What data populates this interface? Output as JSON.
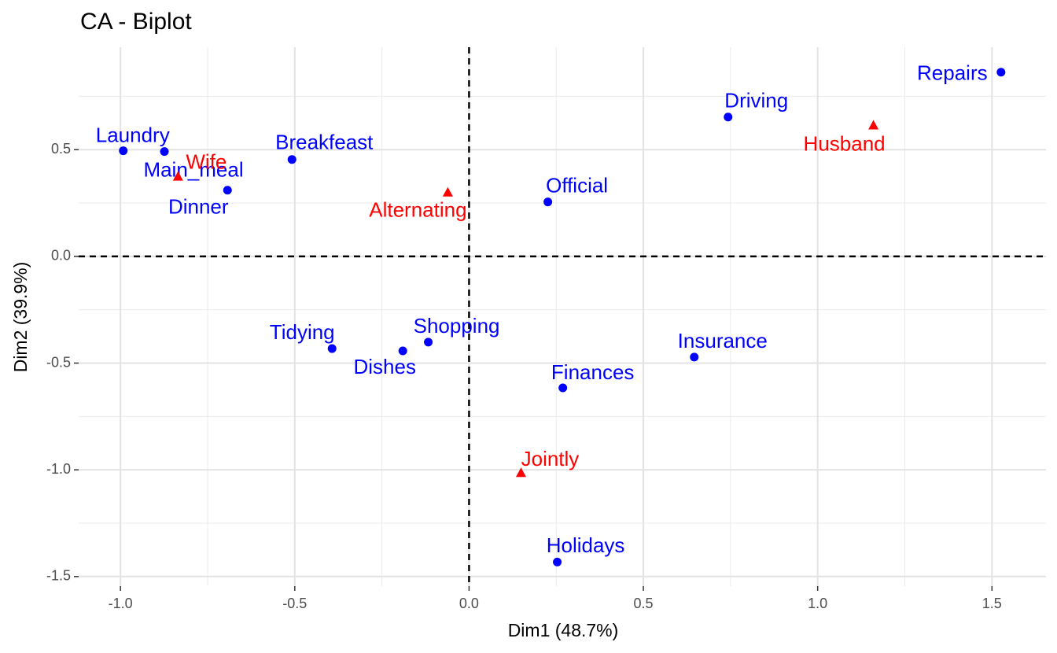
{
  "chart_data": {
    "type": "scatter",
    "title": "CA - Biplot",
    "x_label": "Dim1 (48.7%)",
    "y_label": "Dim2 (39.9%)",
    "xlim": [
      -1.12,
      1.655
    ],
    "ylim": [
      -1.545,
      0.98
    ],
    "xticks": [
      {
        "value": -1,
        "label": "-1.0"
      },
      {
        "value": -0.5,
        "label": "-0.5"
      },
      {
        "value": 0,
        "label": "0.0"
      },
      {
        "value": 0.5,
        "label": "0.5"
      },
      {
        "value": 1,
        "label": "1.0"
      },
      {
        "value": 1.5,
        "label": "1.5"
      }
    ],
    "yticks": [
      {
        "value": 0.5,
        "label": "0.5"
      },
      {
        "value": 0,
        "label": "0.0"
      },
      {
        "value": -0.5,
        "label": "-0.5"
      },
      {
        "value": -1,
        "label": "-1.0"
      },
      {
        "value": -1.5,
        "label": "-1.5"
      }
    ],
    "x_minor_ticks": [
      -0.75,
      -0.25,
      0.25,
      0.75,
      1.25
    ],
    "y_minor_ticks": [
      0.75,
      0.25,
      -0.25,
      -0.75,
      -1.25
    ],
    "grid": true,
    "reference_x": 0,
    "reference_y": 0,
    "series": [
      {
        "color": "#0000ff",
        "marker": "circle",
        "labels": [
          "Laundry",
          "Main_meal",
          "Dinner",
          "Breakfeast",
          "Tidying",
          "Dishes",
          "Shopping",
          "Official",
          "Driving",
          "Finances",
          "Insurance",
          "Holidays",
          "Repairs"
        ],
        "x": [
          -0.992,
          -0.874,
          -0.693,
          -0.508,
          -0.393,
          -0.19,
          -0.117,
          0.226,
          0.743,
          0.269,
          0.646,
          0.253,
          1.526
        ],
        "values": [
          0.495,
          0.491,
          0.31,
          0.454,
          -0.432,
          -0.443,
          -0.402,
          0.255,
          0.653,
          -0.616,
          -0.472,
          -1.432,
          0.863
        ]
      },
      {
        "color": "#ff0000",
        "marker": "triangle",
        "labels": [
          "Wife",
          "Alternating",
          "Jointly",
          "Husband"
        ],
        "x": [
          -0.835,
          -0.061,
          0.149,
          1.16
        ],
        "values": [
          0.373,
          0.299,
          -1.015,
          0.613
        ]
      }
    ]
  }
}
